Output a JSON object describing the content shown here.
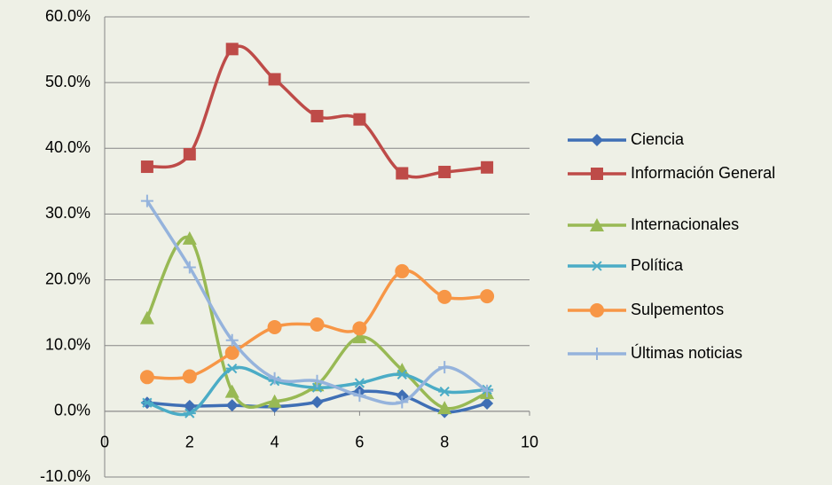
{
  "chart_data": {
    "type": "line",
    "smooth": true,
    "x": [
      1,
      2,
      3,
      4,
      5,
      6,
      7,
      8,
      9
    ],
    "xlim": [
      0,
      10
    ],
    "xticks": [
      0,
      2,
      4,
      6,
      8,
      10
    ],
    "ylim": [
      -10,
      60
    ],
    "yticks": [
      {
        "value": -10,
        "label": "-10.0%"
      },
      {
        "value": 0,
        "label": "0.0%"
      },
      {
        "value": 10,
        "label": "10.0%"
      },
      {
        "value": 20,
        "label": "20.0%"
      },
      {
        "value": 30,
        "label": "30.0%"
      },
      {
        "value": 40,
        "label": "40.0%"
      },
      {
        "value": 50,
        "label": "50.0%"
      },
      {
        "value": 60,
        "label": "60.0%"
      }
    ],
    "grid": true,
    "legend": "right",
    "series": [
      {
        "name": "Ciencia",
        "color": "#3f6fb5",
        "marker": "diamond",
        "values": [
          1.3,
          0.8,
          0.9,
          0.7,
          1.4,
          3.0,
          2.4,
          -0.1,
          1.2
        ]
      },
      {
        "name": "Información General",
        "color": "#be4b48",
        "marker": "square",
        "values": [
          37.2,
          39.1,
          55.1,
          50.5,
          44.9,
          44.4,
          36.2,
          36.4,
          37.1
        ]
      },
      {
        "name": "Internacionales",
        "color": "#98b954",
        "marker": "triangle",
        "values": [
          14.2,
          26.3,
          3.0,
          1.5,
          4.0,
          11.3,
          6.3,
          0.5,
          2.8
        ]
      },
      {
        "name": "Política",
        "color": "#4bacc6",
        "marker": "asterisk",
        "values": [
          1.3,
          -0.3,
          6.5,
          4.6,
          3.6,
          4.3,
          5.6,
          3.0,
          3.3
        ]
      },
      {
        "name": "Sulpementos",
        "color": "#f79646",
        "marker": "circle",
        "values": [
          5.2,
          5.3,
          8.9,
          12.8,
          13.2,
          12.6,
          21.3,
          17.4,
          17.5
        ]
      },
      {
        "name": "Últimas noticias",
        "color": "#95b3dc",
        "marker": "plus",
        "values": [
          32.0,
          21.9,
          10.8,
          5.0,
          4.6,
          2.4,
          1.4,
          6.7,
          3.1
        ]
      }
    ]
  }
}
